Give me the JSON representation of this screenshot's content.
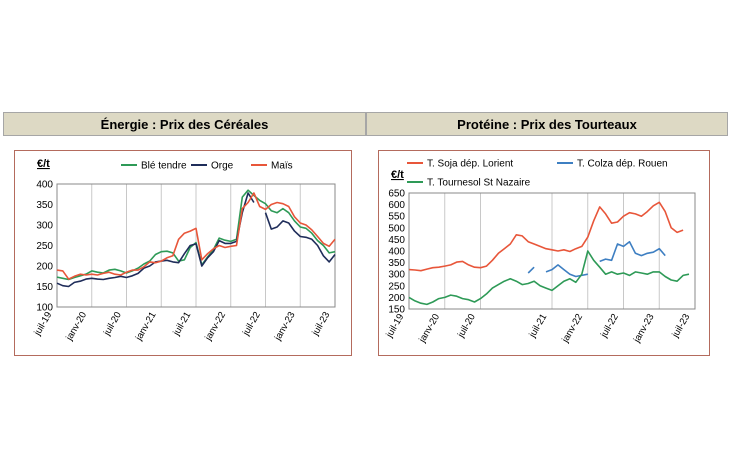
{
  "headers": {
    "left": "Énergie : Prix des Céréales",
    "right": "Protéine : Prix des Tourteaux"
  },
  "chart_data": [
    {
      "type": "line",
      "title": "Énergie : Prix des Céréales",
      "ylabel": "€/t",
      "ylim": [
        100,
        400
      ],
      "yticks": [
        100,
        150,
        200,
        250,
        300,
        350,
        400
      ],
      "xlim": [
        0,
        48
      ],
      "xticks": [
        {
          "label": "juil-19",
          "x": 0
        },
        {
          "label": "janv-20",
          "x": 6
        },
        {
          "label": "juil-20",
          "x": 12
        },
        {
          "label": "janv-21",
          "x": 18
        },
        {
          "label": "juil-21",
          "x": 24
        },
        {
          "label": "janv-22",
          "x": 30
        },
        {
          "label": "juil-22",
          "x": 36
        },
        {
          "label": "janv-23",
          "x": 42
        },
        {
          "label": "juil-23",
          "x": 48
        }
      ],
      "grid_x": true,
      "legend_position": "top",
      "series": [
        {
          "name": "Blé tendre",
          "color": "#2e9a57",
          "values": [
            173,
            170,
            167,
            172,
            176,
            180,
            188,
            185,
            183,
            190,
            192,
            188,
            183,
            188,
            195,
            205,
            212,
            228,
            235,
            236,
            232,
            212,
            215,
            245,
            257,
            203,
            222,
            240,
            268,
            263,
            260,
            265,
            368,
            385,
            372,
            360,
            352,
            335,
            330,
            340,
            330,
            310,
            295,
            292,
            280,
            262,
            250,
            232,
            235
          ]
        },
        {
          "name": "Orge",
          "color": "#1f2d5a",
          "values": [
            158,
            152,
            150,
            160,
            163,
            168,
            170,
            168,
            167,
            170,
            172,
            175,
            172,
            176,
            182,
            195,
            200,
            210,
            212,
            214,
            210,
            208,
            230,
            250,
            254,
            200,
            220,
            235,
            262,
            255,
            255,
            260,
            330,
            378,
            355,
            null,
            330,
            290,
            295,
            310,
            305,
            285,
            272,
            270,
            265,
            250,
            225,
            210,
            228
          ]
        },
        {
          "name": "Maïs",
          "color": "#e8563a",
          "values": [
            190,
            188,
            168,
            175,
            180,
            178,
            180,
            178,
            182,
            185,
            180,
            178,
            185,
            190,
            190,
            198,
            210,
            208,
            212,
            220,
            225,
            265,
            280,
            285,
            292,
            215,
            230,
            242,
            250,
            245,
            248,
            250,
            340,
            355,
            378,
            345,
            338,
            350,
            355,
            352,
            345,
            320,
            305,
            300,
            288,
            272,
            255,
            248,
            265
          ]
        }
      ]
    },
    {
      "type": "line",
      "title": "Protéine : Prix des Tourteaux",
      "ylabel": "€/t",
      "ylim": [
        150,
        650
      ],
      "yticks": [
        150,
        200,
        250,
        300,
        350,
        400,
        450,
        500,
        550,
        600,
        650
      ],
      "xlim": [
        0,
        48
      ],
      "xticks": [
        {
          "label": "juil-19",
          "x": 0
        },
        {
          "label": "janv-20",
          "x": 6
        },
        {
          "label": "juil-20",
          "x": 12
        },
        {
          "label": "juil-21",
          "x": 24
        },
        {
          "label": "janv-22",
          "x": 30
        },
        {
          "label": "juil-22",
          "x": 36
        },
        {
          "label": "janv-23",
          "x": 42
        },
        {
          "label": "juil-23",
          "x": 48
        }
      ],
      "grid_x": true,
      "legend_position": "top",
      "series": [
        {
          "name": "T. Soja dép. Lorient",
          "color": "#e8563a",
          "values": [
            320,
            318,
            315,
            322,
            328,
            330,
            335,
            340,
            352,
            355,
            340,
            330,
            328,
            335,
            360,
            390,
            410,
            430,
            470,
            465,
            440,
            430,
            420,
            410,
            405,
            400,
            405,
            398,
            410,
            420,
            460,
            530,
            590,
            560,
            520,
            525,
            550,
            565,
            560,
            550,
            570,
            595,
            610,
            570,
            500,
            480,
            490
          ]
        },
        {
          "name": "T. Colza dép. Rouen",
          "color": "#3e7fc2",
          "values": [
            null,
            null,
            null,
            null,
            null,
            null,
            null,
            null,
            null,
            null,
            null,
            null,
            null,
            null,
            null,
            null,
            null,
            null,
            null,
            null,
            305,
            330,
            null,
            310,
            320,
            340,
            320,
            300,
            290,
            295,
            300,
            null,
            355,
            365,
            360,
            430,
            420,
            440,
            390,
            380,
            390,
            395,
            410,
            380,
            null,
            null,
            null,
            null,
            null
          ]
        },
        {
          "name": "T. Tournesol St Nazaire",
          "color": "#2e9a57",
          "values": [
            200,
            185,
            175,
            170,
            180,
            195,
            200,
            210,
            205,
            195,
            190,
            180,
            195,
            215,
            240,
            255,
            270,
            280,
            270,
            255,
            260,
            270,
            250,
            240,
            230,
            250,
            270,
            280,
            265,
            300,
            400,
            360,
            330,
            300,
            310,
            300,
            305,
            295,
            310,
            305,
            300,
            310,
            310,
            290,
            275,
            270,
            295,
            300,
            null
          ]
        }
      ]
    }
  ]
}
